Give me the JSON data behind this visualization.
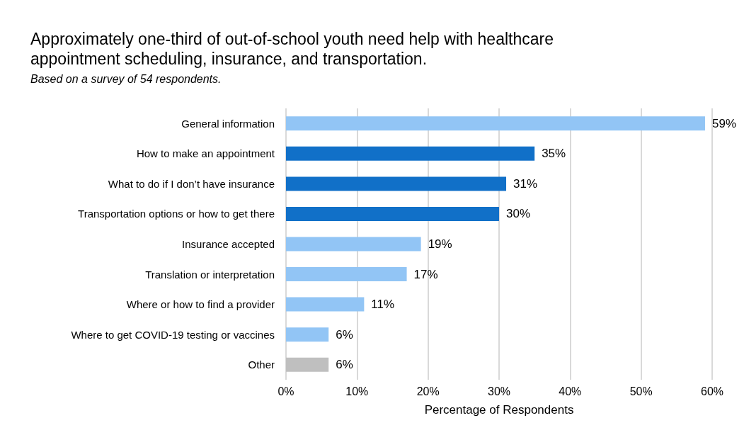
{
  "chart_data": {
    "type": "bar",
    "orientation": "horizontal",
    "title": "Approximately one-third of out-of-school youth need help with healthcare appointment scheduling, insurance, and transportation.",
    "subtitle": "Based on a survey of 54 respondents.",
    "xlabel": "Percentage of Respondents",
    "categories": [
      "General information",
      "How to make an appointment",
      "What to do if I don’t have insurance",
      "Transportation options or how to get there",
      "Insurance accepted",
      "Translation or interpretation",
      "Where or how to find a provider",
      "Where to get COVID-19 testing or vaccines",
      "Other"
    ],
    "values": [
      59,
      35,
      31,
      30,
      19,
      17,
      11,
      6,
      6
    ],
    "colors": [
      "#92c5f5",
      "#1170c8",
      "#1170c8",
      "#1170c8",
      "#92c5f5",
      "#92c5f5",
      "#92c5f5",
      "#92c5f5",
      "#bfbfbf"
    ],
    "value_labels": [
      "59%",
      "35%",
      "31%",
      "30%",
      "19%",
      "17%",
      "11%",
      "6%",
      "6%"
    ],
    "xlim": [
      0,
      60
    ],
    "xticks": [
      {
        "value": 0,
        "label": "0%"
      },
      {
        "value": 10,
        "label": "10%"
      },
      {
        "value": 20,
        "label": "20%"
      },
      {
        "value": 30,
        "label": "30%"
      },
      {
        "value": 40,
        "label": "40%"
      },
      {
        "value": 50,
        "label": "50%"
      },
      {
        "value": 60,
        "label": "60%"
      }
    ],
    "grid": "x"
  }
}
